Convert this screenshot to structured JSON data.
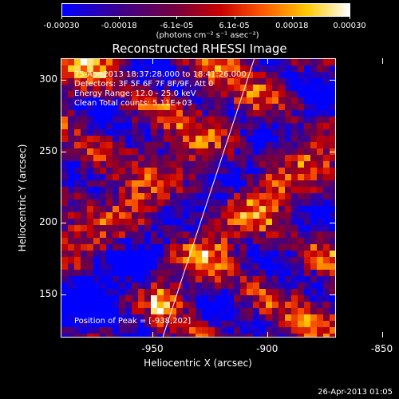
{
  "colorbar": {
    "tick_labels": [
      "-0.00030",
      "-0.00018",
      "-6.1e-05",
      "6.1e-05",
      "0.00018",
      "0.00030"
    ],
    "units": "(photons cm⁻² s⁻¹ asec⁻²)"
  },
  "chart_data": {
    "type": "heatmap",
    "title": "Reconstructed RHESSI Image",
    "xlabel": "Heliocentric X (arcsec)",
    "ylabel": "Heliocentric Y (arcsec)",
    "xlim": [
      -990,
      -870
    ],
    "ylim": [
      120,
      315
    ],
    "x_ticks": [
      -950,
      -900,
      -850
    ],
    "y_ticks": [
      150,
      200,
      250,
      300
    ],
    "color_range": [
      -0.0003,
      0.0003
    ],
    "colormap": "rainbow (blue-purple-red-yellow-white)",
    "limb_line": {
      "x": [
        -946,
        -906
      ],
      "y": [
        120,
        315
      ]
    },
    "peak_position": [
      -938,
      202
    ]
  },
  "annotations": {
    "time_range": "25-Apr-2013 18:37:28.000 to 18:41:26.000",
    "detectors": "Detectors: 3F 5F 6F 7F 8F/9F, Att 0",
    "energy": "Energy Range: 12.0 - 25.0 keV",
    "clean": "Clean     Total counts: 5.11E+03",
    "peak": "Position of Peak = [-938,202]"
  },
  "footer": "26-Apr-2013 01:05"
}
